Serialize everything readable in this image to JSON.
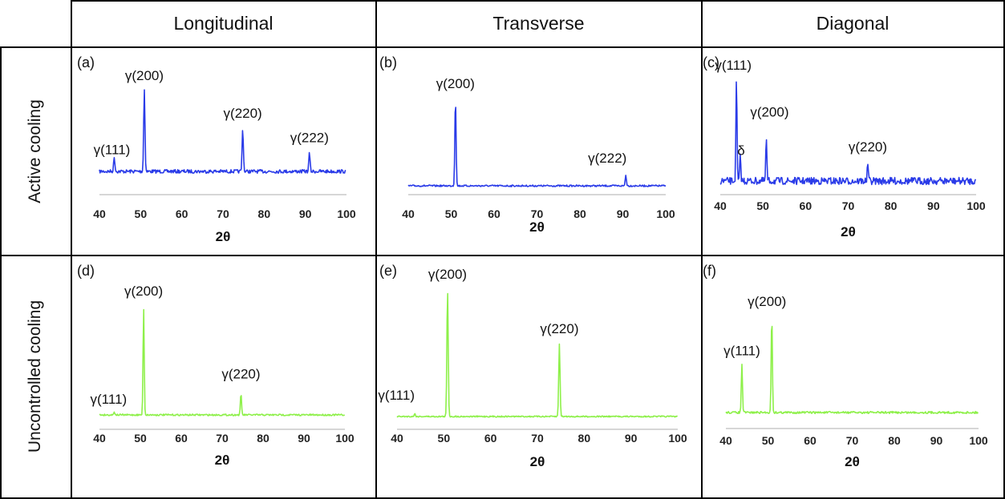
{
  "headers": {
    "columns": [
      "Longitudinal",
      "Transverse",
      "Diagonal"
    ],
    "rows": [
      "Active cooling",
      "Uncontrolled cooling"
    ]
  },
  "colors": {
    "active": "#2a3be8",
    "uncontrolled": "#8ef04a",
    "axis": "#c8c8c8"
  },
  "chart_data": [
    {
      "type": "line",
      "panel_label": "(a)",
      "row": "Active cooling",
      "column": "Longitudinal",
      "xlabel": "2θ",
      "xlim": [
        40,
        100
      ],
      "xticks": [
        40,
        50,
        60,
        70,
        80,
        90,
        100
      ],
      "peaks": [
        {
          "x": 43.6,
          "height": 0.17,
          "label": "γ(111)"
        },
        {
          "x": 50.9,
          "height": 1.0,
          "label": "γ(200)"
        },
        {
          "x": 74.8,
          "height": 0.52,
          "label": "γ(220)"
        },
        {
          "x": 91.0,
          "height": 0.22,
          "label": "γ(222)"
        }
      ]
    },
    {
      "type": "line",
      "panel_label": "(b)",
      "row": "Active cooling",
      "column": "Transverse",
      "xlabel": "2θ",
      "xlim": [
        40,
        100
      ],
      "xticks": [
        40,
        50,
        60,
        70,
        80,
        90,
        100
      ],
      "peaks": [
        {
          "x": 51.0,
          "height": 1.0,
          "label": "γ(200)"
        },
        {
          "x": 90.7,
          "height": 0.12,
          "label": "γ(222)"
        }
      ]
    },
    {
      "type": "line",
      "panel_label": "(c)",
      "row": "Active cooling",
      "column": "Diagonal",
      "xlabel": "2θ",
      "xlim": [
        40,
        100
      ],
      "xticks": [
        40,
        50,
        60,
        70,
        80,
        90,
        100
      ],
      "peaks": [
        {
          "x": 43.8,
          "height": 1.0,
          "label": "γ(111)"
        },
        {
          "x": 44.7,
          "height": 0.25,
          "label": "δ"
        },
        {
          "x": 50.8,
          "height": 0.42,
          "label": "γ(200)"
        },
        {
          "x": 74.6,
          "height": 0.18,
          "label": "γ(220)"
        }
      ]
    },
    {
      "type": "line",
      "panel_label": "(d)",
      "row": "Uncontrolled cooling",
      "column": "Longitudinal",
      "xlabel": "2θ",
      "xlim": [
        40,
        100
      ],
      "xticks": [
        40,
        50,
        60,
        70,
        80,
        90,
        100
      ],
      "peaks": [
        {
          "x": 43.6,
          "height": 0.03,
          "label": "γ(111)"
        },
        {
          "x": 50.8,
          "height": 1.0,
          "label": "γ(200)"
        },
        {
          "x": 74.6,
          "height": 0.2,
          "label": "γ(220)"
        }
      ]
    },
    {
      "type": "line",
      "panel_label": "(e)",
      "row": "Uncontrolled cooling",
      "column": "Transverse",
      "xlabel": "2θ",
      "xlim": [
        40,
        100
      ],
      "xticks": [
        40,
        50,
        60,
        70,
        80,
        90,
        100
      ],
      "peaks": [
        {
          "x": 43.8,
          "height": 0.02,
          "label": "γ(111)"
        },
        {
          "x": 50.8,
          "height": 1.0,
          "label": "γ(200)"
        },
        {
          "x": 74.7,
          "height": 0.57,
          "label": "γ(220)"
        }
      ]
    },
    {
      "type": "line",
      "panel_label": "(f)",
      "row": "Uncontrolled cooling",
      "column": "Diagonal",
      "xlabel": "2θ",
      "xlim": [
        40,
        100
      ],
      "xticks": [
        40,
        50,
        60,
        70,
        80,
        90,
        100
      ],
      "peaks": [
        {
          "x": 43.8,
          "height": 0.49,
          "label": "γ(111)"
        },
        {
          "x": 50.9,
          "height": 1.0,
          "label": "γ(200)"
        }
      ]
    }
  ]
}
